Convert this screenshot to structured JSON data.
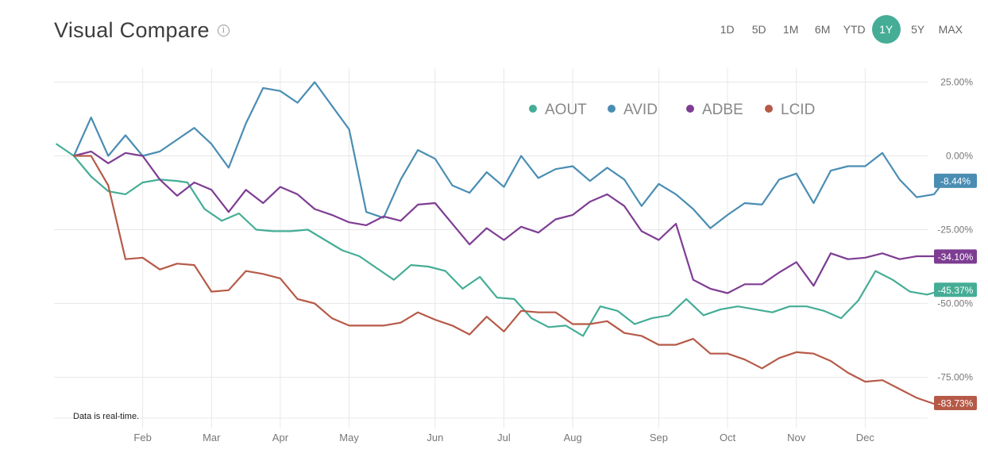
{
  "header": {
    "title": "Visual Compare",
    "info_icon": "info-icon",
    "ranges": [
      "1D",
      "5D",
      "1M",
      "6M",
      "YTD",
      "1Y",
      "5Y",
      "MAX"
    ],
    "active_range": "1Y"
  },
  "footnote": "Data is real-time.",
  "colors": {
    "AOUT": "#45ad96",
    "AVID": "#4a8db3",
    "ADBE": "#7e3d93",
    "LCID": "#b65a48",
    "grid": "#e8e8e8",
    "axis_text": "#777777",
    "active_range_bg": "#45ad96"
  },
  "chart_data": {
    "type": "line",
    "title": "Visual Compare",
    "xlabel": "",
    "ylabel": "",
    "x_range": [
      0,
      12.5
    ],
    "ylim": [
      -92,
      32
    ],
    "y_ticks": [
      25,
      0,
      -25,
      -50,
      -75
    ],
    "y_tick_labels": [
      "25.00%",
      "0.00%",
      "-25.00%",
      "-50.00%",
      "-75.00%"
    ],
    "x_ticks": [
      1.15,
      2.15,
      3.15,
      4.15,
      5.4,
      6.4,
      7.4,
      8.65,
      9.65,
      10.65,
      11.65
    ],
    "x_tick_labels": [
      "Feb",
      "Mar",
      "Apr",
      "May",
      "Jun",
      "Jul",
      "Aug",
      "Sep",
      "Oct",
      "Nov",
      "Dec"
    ],
    "legend": [
      "AOUT",
      "AVID",
      "ADBE",
      "LCID"
    ],
    "legend_position": "top-right",
    "grid": true,
    "series": [
      {
        "name": "AOUT",
        "end_label": "-45.37%",
        "points": [
          [
            -0.1,
            4
          ],
          [
            0.15,
            0
          ],
          [
            0.4,
            -7
          ],
          [
            0.65,
            -12
          ],
          [
            0.9,
            -13
          ],
          [
            1.15,
            -9
          ],
          [
            1.4,
            -8
          ],
          [
            1.65,
            -8.5
          ],
          [
            1.8,
            -9
          ],
          [
            2.05,
            -18
          ],
          [
            2.3,
            -22
          ],
          [
            2.55,
            -19.5
          ],
          [
            2.8,
            -25
          ],
          [
            3.05,
            -25.5
          ],
          [
            3.3,
            -25.5
          ],
          [
            3.55,
            -25
          ],
          [
            3.8,
            -28.5
          ],
          [
            4.05,
            -32
          ],
          [
            4.3,
            -34
          ],
          [
            4.55,
            -38
          ],
          [
            4.8,
            -42
          ],
          [
            5.05,
            -37
          ],
          [
            5.3,
            -37.5
          ],
          [
            5.55,
            -39
          ],
          [
            5.8,
            -45
          ],
          [
            6.05,
            -41
          ],
          [
            6.3,
            -48
          ],
          [
            6.55,
            -48.5
          ],
          [
            6.8,
            -55
          ],
          [
            7.05,
            -58
          ],
          [
            7.3,
            -57.5
          ],
          [
            7.55,
            -61
          ],
          [
            7.8,
            -51
          ],
          [
            8.05,
            -52.5
          ],
          [
            8.3,
            -57
          ],
          [
            8.55,
            -55
          ],
          [
            8.8,
            -54
          ],
          [
            9.05,
            -48.5
          ],
          [
            9.3,
            -54
          ],
          [
            9.55,
            -52
          ],
          [
            9.8,
            -51
          ],
          [
            10.05,
            -52
          ],
          [
            10.3,
            -53
          ],
          [
            10.55,
            -51
          ],
          [
            10.8,
            -51
          ],
          [
            11.05,
            -52.5
          ],
          [
            11.3,
            -55
          ],
          [
            11.55,
            -49
          ],
          [
            11.8,
            -39
          ],
          [
            12.05,
            -42
          ],
          [
            12.3,
            -46
          ],
          [
            12.55,
            -47
          ],
          [
            12.8,
            -45.37
          ]
        ]
      },
      {
        "name": "AVID",
        "end_label": "-8.44%",
        "points": [
          [
            0.15,
            0
          ],
          [
            0.4,
            13
          ],
          [
            0.65,
            0
          ],
          [
            0.9,
            7
          ],
          [
            1.15,
            0
          ],
          [
            1.4,
            1.5
          ],
          [
            1.65,
            5.5
          ],
          [
            1.9,
            9.5
          ],
          [
            2.15,
            4
          ],
          [
            2.4,
            -4
          ],
          [
            2.65,
            11
          ],
          [
            2.9,
            23
          ],
          [
            3.15,
            22
          ],
          [
            3.4,
            18
          ],
          [
            3.65,
            25
          ],
          [
            3.9,
            17
          ],
          [
            4.15,
            9
          ],
          [
            4.4,
            -19
          ],
          [
            4.65,
            -21
          ],
          [
            4.9,
            -8
          ],
          [
            5.15,
            2
          ],
          [
            5.4,
            -1
          ],
          [
            5.65,
            -10
          ],
          [
            5.9,
            -12.5
          ],
          [
            6.15,
            -5.5
          ],
          [
            6.4,
            -10.5
          ],
          [
            6.65,
            0
          ],
          [
            6.9,
            -7.5
          ],
          [
            7.15,
            -4.5
          ],
          [
            7.4,
            -3.5
          ],
          [
            7.65,
            -8.5
          ],
          [
            7.9,
            -4
          ],
          [
            8.15,
            -8
          ],
          [
            8.4,
            -17
          ],
          [
            8.65,
            -9.5
          ],
          [
            8.9,
            -13
          ],
          [
            9.15,
            -18
          ],
          [
            9.4,
            -24.5
          ],
          [
            9.65,
            -20
          ],
          [
            9.9,
            -16
          ],
          [
            10.15,
            -16.5
          ],
          [
            10.4,
            -8
          ],
          [
            10.65,
            -6
          ],
          [
            10.9,
            -16
          ],
          [
            11.15,
            -5
          ],
          [
            11.4,
            -3.5
          ],
          [
            11.65,
            -3.5
          ],
          [
            11.9,
            1
          ],
          [
            12.15,
            -8
          ],
          [
            12.4,
            -14
          ],
          [
            12.65,
            -13
          ],
          [
            12.8,
            -8.44
          ]
        ]
      },
      {
        "name": "ADBE",
        "end_label": "-34.10%",
        "points": [
          [
            0.15,
            0
          ],
          [
            0.4,
            1.5
          ],
          [
            0.65,
            -2.5
          ],
          [
            0.9,
            1
          ],
          [
            1.15,
            0
          ],
          [
            1.4,
            -8
          ],
          [
            1.65,
            -13.5
          ],
          [
            1.9,
            -9
          ],
          [
            2.15,
            -11.5
          ],
          [
            2.4,
            -19
          ],
          [
            2.65,
            -11.5
          ],
          [
            2.9,
            -16
          ],
          [
            3.15,
            -10.5
          ],
          [
            3.4,
            -13
          ],
          [
            3.65,
            -18
          ],
          [
            3.9,
            -20
          ],
          [
            4.15,
            -22.5
          ],
          [
            4.4,
            -23.5
          ],
          [
            4.65,
            -20.5
          ],
          [
            4.9,
            -22
          ],
          [
            5.15,
            -16.5
          ],
          [
            5.4,
            -16
          ],
          [
            5.65,
            -23
          ],
          [
            5.9,
            -30
          ],
          [
            6.15,
            -24.5
          ],
          [
            6.4,
            -28.5
          ],
          [
            6.65,
            -24
          ],
          [
            6.9,
            -26
          ],
          [
            7.15,
            -21.5
          ],
          [
            7.4,
            -20
          ],
          [
            7.65,
            -15.5
          ],
          [
            7.9,
            -13
          ],
          [
            8.15,
            -17
          ],
          [
            8.4,
            -25.5
          ],
          [
            8.65,
            -28.5
          ],
          [
            8.9,
            -23
          ],
          [
            9.15,
            -42
          ],
          [
            9.4,
            -45
          ],
          [
            9.65,
            -46.5
          ],
          [
            9.9,
            -43.5
          ],
          [
            10.15,
            -43.5
          ],
          [
            10.4,
            -39.5
          ],
          [
            10.65,
            -36
          ],
          [
            10.9,
            -44
          ],
          [
            11.15,
            -33
          ],
          [
            11.4,
            -35
          ],
          [
            11.65,
            -34.5
          ],
          [
            11.9,
            -33
          ],
          [
            12.15,
            -35
          ],
          [
            12.4,
            -34
          ],
          [
            12.65,
            -34
          ],
          [
            12.8,
            -34.1
          ]
        ]
      },
      {
        "name": "LCID",
        "end_label": "-83.73%",
        "points": [
          [
            0.15,
            0
          ],
          [
            0.4,
            0
          ],
          [
            0.65,
            -10
          ],
          [
            0.9,
            -35
          ],
          [
            1.15,
            -34.5
          ],
          [
            1.4,
            -38.5
          ],
          [
            1.65,
            -36.5
          ],
          [
            1.9,
            -37
          ],
          [
            2.15,
            -46
          ],
          [
            2.4,
            -45.5
          ],
          [
            2.65,
            -39
          ],
          [
            2.9,
            -40
          ],
          [
            3.15,
            -41.5
          ],
          [
            3.4,
            -48.5
          ],
          [
            3.65,
            -50
          ],
          [
            3.9,
            -55
          ],
          [
            4.15,
            -57.5
          ],
          [
            4.4,
            -57.5
          ],
          [
            4.65,
            -57.5
          ],
          [
            4.9,
            -56.5
          ],
          [
            5.15,
            -53
          ],
          [
            5.4,
            -55.5
          ],
          [
            5.65,
            -57.5
          ],
          [
            5.9,
            -60.5
          ],
          [
            6.15,
            -54.5
          ],
          [
            6.4,
            -59.5
          ],
          [
            6.65,
            -52.5
          ],
          [
            6.9,
            -53
          ],
          [
            7.15,
            -53
          ],
          [
            7.4,
            -57
          ],
          [
            7.65,
            -57
          ],
          [
            7.9,
            -56
          ],
          [
            8.15,
            -60
          ],
          [
            8.4,
            -61
          ],
          [
            8.65,
            -64
          ],
          [
            8.9,
            -64
          ],
          [
            9.15,
            -62
          ],
          [
            9.4,
            -67
          ],
          [
            9.65,
            -67
          ],
          [
            9.9,
            -69
          ],
          [
            10.15,
            -72
          ],
          [
            10.4,
            -68.5
          ],
          [
            10.65,
            -66.5
          ],
          [
            10.9,
            -67
          ],
          [
            11.15,
            -69.5
          ],
          [
            11.4,
            -73.5
          ],
          [
            11.65,
            -76.5
          ],
          [
            11.9,
            -76
          ],
          [
            12.15,
            -79
          ],
          [
            12.4,
            -82
          ],
          [
            12.65,
            -84
          ],
          [
            12.8,
            -83.73
          ]
        ]
      }
    ]
  }
}
